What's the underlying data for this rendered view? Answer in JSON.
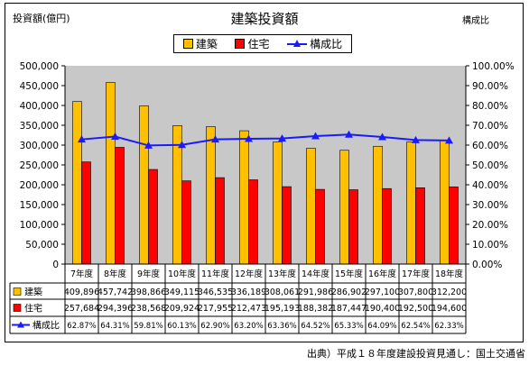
{
  "chart_data": {
    "type": "bar",
    "title": "建築投資額",
    "y_left_label": "投資額(億円)",
    "y_right_label": "構成比",
    "categories": [
      "7年度",
      "8年度",
      "9年度",
      "10年度",
      "11年度",
      "12年度",
      "13年度",
      "14年度",
      "15年度",
      "16年度",
      "17年度",
      "18年度"
    ],
    "series": [
      {
        "name": "建築",
        "kind": "bar",
        "axis": "left",
        "color": "#ffc000",
        "values": [
          409896,
          457742,
          398866,
          349115,
          346535,
          336189,
          308061,
          291986,
          286902,
          297100,
          307800,
          312200
        ],
        "labels": [
          "409,896",
          "457,742",
          "398,866",
          "349,115",
          "346,535",
          "336,189",
          "308,061",
          "291,986",
          "286,902",
          "297,100",
          "307,800",
          "312,200"
        ]
      },
      {
        "name": "住宅",
        "kind": "bar",
        "axis": "left",
        "color": "#ff0000",
        "values": [
          257684,
          294396,
          238568,
          209924,
          217955,
          212473,
          195193,
          188382,
          187447,
          190400,
          192500,
          194600
        ],
        "labels": [
          "257,684",
          "294,396",
          "238,568",
          "209,924",
          "217,955",
          "212,473",
          "195,193",
          "188,382",
          "187,447",
          "190,400",
          "192,500",
          "194,600"
        ]
      },
      {
        "name": "構成比",
        "kind": "line",
        "axis": "right",
        "color": "#1a1aff",
        "values": [
          62.87,
          64.31,
          59.81,
          60.13,
          62.9,
          63.2,
          63.36,
          64.52,
          65.33,
          64.09,
          62.54,
          62.33
        ],
        "labels": [
          "62.87%",
          "64.31%",
          "59.81%",
          "60.13%",
          "62.90%",
          "63.20%",
          "63.36%",
          "64.52%",
          "65.33%",
          "64.09%",
          "62.54%",
          "62.33%"
        ]
      }
    ],
    "y_left": {
      "min": 0,
      "max": 500000,
      "step": 50000,
      "ticks": [
        "0",
        "50,000",
        "100,000",
        "150,000",
        "200,000",
        "250,000",
        "300,000",
        "350,000",
        "400,000",
        "450,000",
        "500,000"
      ]
    },
    "y_right": {
      "min": 0,
      "max": 100,
      "step": 10,
      "ticks": [
        "0.00%",
        "10.00%",
        "20.00%",
        "30.00%",
        "40.00%",
        "50.00%",
        "60.00%",
        "70.00%",
        "80.00%",
        "90.00%",
        "100.00%"
      ]
    },
    "legend_position": "top-center",
    "grid": false,
    "data_table": true
  },
  "source": "出典）平成１８年度建設投資見通し：国土交通省"
}
